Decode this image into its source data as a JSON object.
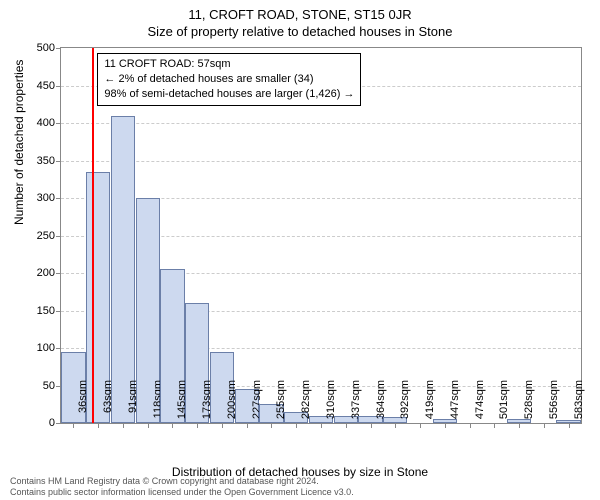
{
  "title_line1": "11, CROFT ROAD, STONE, ST15 0JR",
  "title_line2": "Size of property relative to detached houses in Stone",
  "y_axis_label": "Number of detached properties",
  "x_axis_label": "Distribution of detached houses by size in Stone",
  "ylim_max": 500,
  "ytick_step": 50,
  "yticks": [
    0,
    50,
    100,
    150,
    200,
    250,
    300,
    350,
    400,
    450,
    500
  ],
  "xticks": [
    "36sqm",
    "63sqm",
    "91sqm",
    "118sqm",
    "145sqm",
    "173sqm",
    "200sqm",
    "227sqm",
    "255sqm",
    "282sqm",
    "310sqm",
    "337sqm",
    "364sqm",
    "392sqm",
    "419sqm",
    "447sqm",
    "474sqm",
    "501sqm",
    "528sqm",
    "556sqm",
    "583sqm"
  ],
  "bars": [
    95,
    335,
    410,
    300,
    205,
    160,
    95,
    45,
    25,
    15,
    10,
    10,
    10,
    8,
    0,
    5,
    0,
    0,
    5,
    0,
    4
  ],
  "bar_fill": "#cdd9ef",
  "bar_stroke": "#6b7fa8",
  "grid_color": "#cccccc",
  "axis_color": "#888888",
  "background": "#ffffff",
  "ref_line_position_sqm": 57,
  "ref_line_color": "#ff0000",
  "annotation": {
    "line1": "11 CROFT ROAD: 57sqm",
    "line2": "← 2% of detached houses are smaller (34)",
    "line3": "98% of semi-detached houses are larger (1,426) →"
  },
  "footer_line1": "Contains HM Land Registry data © Crown copyright and database right 2024.",
  "footer_line2": "Contains public sector information licensed under the Open Government Licence v3.0."
}
